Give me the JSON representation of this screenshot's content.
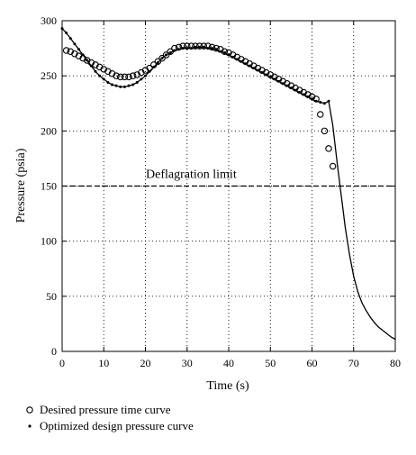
{
  "chart_data": {
    "type": "scatter",
    "xlabel": "Time (s)",
    "ylabel": "Pressure (psia)",
    "xlim": [
      0,
      80
    ],
    "ylim": [
      0,
      300
    ],
    "xticks": [
      0,
      10,
      20,
      30,
      40,
      50,
      60,
      70,
      80
    ],
    "yticks": [
      0,
      50,
      100,
      150,
      200,
      250,
      300
    ],
    "grid": true,
    "legend_position": "bottom",
    "reference_line": {
      "y": 150,
      "label": "Deflagration limit",
      "style": "dashed"
    },
    "series": [
      {
        "name": "Desired pressure time curve",
        "marker": "open-circle",
        "points": [
          [
            1,
            273
          ],
          [
            2,
            272
          ],
          [
            3,
            270
          ],
          [
            4,
            268
          ],
          [
            5,
            266
          ],
          [
            6,
            264
          ],
          [
            7,
            262
          ],
          [
            8,
            260
          ],
          [
            9,
            258
          ],
          [
            10,
            256
          ],
          [
            11,
            254
          ],
          [
            12,
            252
          ],
          [
            13,
            250
          ],
          [
            14,
            249
          ],
          [
            15,
            249
          ],
          [
            16,
            249
          ],
          [
            17,
            250
          ],
          [
            18,
            251
          ],
          [
            19,
            253
          ],
          [
            20,
            255
          ],
          [
            21,
            257
          ],
          [
            22,
            260
          ],
          [
            23,
            263
          ],
          [
            24,
            266
          ],
          [
            25,
            269
          ],
          [
            26,
            272
          ],
          [
            27,
            275
          ],
          [
            28,
            276
          ],
          [
            29,
            277
          ],
          [
            30,
            277
          ],
          [
            31,
            277
          ],
          [
            32,
            277
          ],
          [
            33,
            277
          ],
          [
            34,
            277
          ],
          [
            35,
            277
          ],
          [
            36,
            276
          ],
          [
            37,
            275
          ],
          [
            38,
            274
          ],
          [
            39,
            272
          ],
          [
            40,
            271
          ],
          [
            41,
            269
          ],
          [
            42,
            267
          ],
          [
            43,
            265
          ],
          [
            44,
            263
          ],
          [
            45,
            261
          ],
          [
            46,
            259
          ],
          [
            47,
            257
          ],
          [
            48,
            255
          ],
          [
            49,
            253
          ],
          [
            50,
            251
          ],
          [
            51,
            249
          ],
          [
            52,
            247
          ],
          [
            53,
            245
          ],
          [
            54,
            243
          ],
          [
            55,
            241
          ],
          [
            56,
            239
          ],
          [
            57,
            237
          ],
          [
            58,
            235
          ],
          [
            59,
            233
          ],
          [
            60,
            231
          ],
          [
            61,
            229
          ],
          [
            62,
            215
          ],
          [
            63,
            200
          ],
          [
            64,
            184
          ],
          [
            65,
            168
          ]
        ]
      },
      {
        "name": "Optimized design pressure curve",
        "marker": "dot-line",
        "points": [
          [
            0,
            293
          ],
          [
            1,
            289
          ],
          [
            2,
            284
          ],
          [
            3,
            279
          ],
          [
            4,
            274
          ],
          [
            5,
            269
          ],
          [
            6,
            264
          ],
          [
            7,
            259
          ],
          [
            8,
            254
          ],
          [
            9,
            250
          ],
          [
            10,
            247
          ],
          [
            11,
            244
          ],
          [
            12,
            242
          ],
          [
            13,
            241
          ],
          [
            14,
            240
          ],
          [
            15,
            240
          ],
          [
            16,
            241
          ],
          [
            17,
            242
          ],
          [
            18,
            244
          ],
          [
            19,
            247
          ],
          [
            20,
            250
          ],
          [
            21,
            254
          ],
          [
            22,
            258
          ],
          [
            23,
            262
          ],
          [
            24,
            266
          ],
          [
            25,
            269
          ],
          [
            26,
            271
          ],
          [
            27,
            273
          ],
          [
            28,
            274
          ],
          [
            29,
            275
          ],
          [
            30,
            275
          ],
          [
            31,
            275
          ],
          [
            32,
            276
          ],
          [
            33,
            276
          ],
          [
            34,
            276
          ],
          [
            35,
            275
          ],
          [
            36,
            275
          ],
          [
            37,
            274
          ],
          [
            38,
            272
          ],
          [
            39,
            271
          ],
          [
            40,
            269
          ],
          [
            41,
            267
          ],
          [
            42,
            265
          ],
          [
            43,
            263
          ],
          [
            44,
            261
          ],
          [
            45,
            259
          ],
          [
            46,
            257
          ],
          [
            47,
            255
          ],
          [
            48,
            253
          ],
          [
            49,
            251
          ],
          [
            50,
            249
          ],
          [
            51,
            247
          ],
          [
            52,
            245
          ],
          [
            53,
            243
          ],
          [
            54,
            241
          ],
          [
            55,
            239
          ],
          [
            56,
            237
          ],
          [
            57,
            235
          ],
          [
            58,
            233
          ],
          [
            59,
            231
          ],
          [
            60,
            229
          ],
          [
            61,
            227
          ],
          [
            62,
            226
          ],
          [
            63,
            225
          ],
          [
            64,
            227
          ],
          [
            65,
            205
          ],
          [
            66,
            172
          ],
          [
            67,
            142
          ],
          [
            68,
            112
          ],
          [
            69,
            88
          ],
          [
            70,
            68
          ],
          [
            71,
            54
          ],
          [
            72,
            44
          ],
          [
            73,
            37
          ],
          [
            74,
            31
          ],
          [
            75,
            26
          ],
          [
            76,
            22
          ],
          [
            77,
            19
          ],
          [
            78,
            16
          ],
          [
            79,
            13
          ],
          [
            80,
            11
          ]
        ]
      }
    ]
  }
}
